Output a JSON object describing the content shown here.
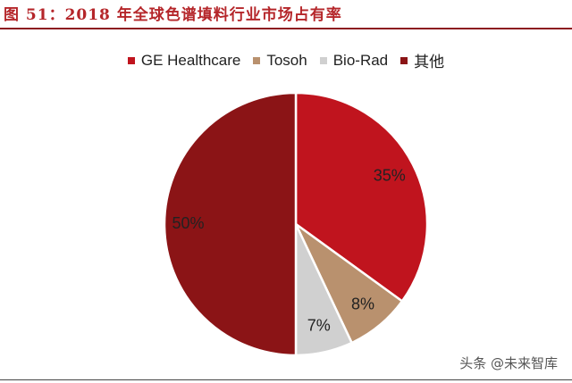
{
  "figure_title": "图 51：2018 年全球色谱填料行业市场占有率",
  "watermark": "头条 @未来智库",
  "chart_data": {
    "type": "pie",
    "categories": [
      "GE Healthcare",
      "Tosoh",
      "Bio-Rad",
      "其他"
    ],
    "values": [
      35,
      8,
      7,
      50
    ],
    "data_labels": [
      "35%",
      "8%",
      "7%",
      "50%"
    ],
    "colors": [
      "#c0141e",
      "#b9916e",
      "#d0d0d0",
      "#8b1416"
    ],
    "legend_position": "top",
    "start_angle": "12 o'clock, clockwise"
  }
}
